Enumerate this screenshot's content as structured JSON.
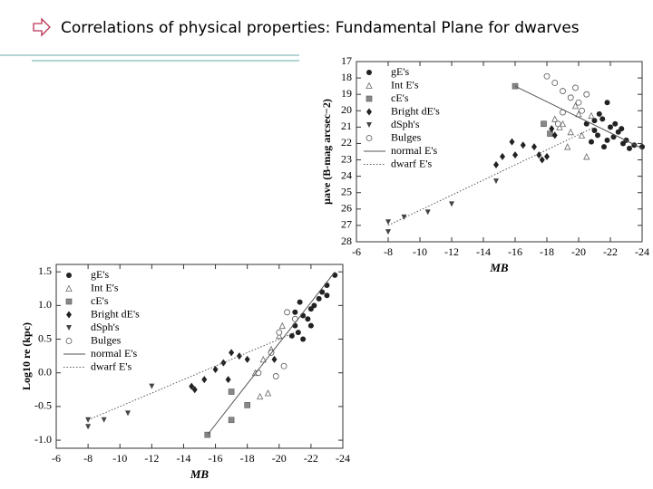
{
  "title": "Correlations of physical properties: Fundamental Plane for dwarves",
  "chart_data": [
    {
      "type": "scatter",
      "xlabel": "MB",
      "ylabel": "μave (B-mag arcsec−2)",
      "xlim": [
        -6,
        -24
      ],
      "xticks": [
        -6,
        -8,
        -10,
        -12,
        -14,
        -16,
        -18,
        -20,
        -22,
        -24
      ],
      "ylim": [
        28,
        17
      ],
      "yticks": [
        17,
        18,
        19,
        20,
        21,
        22,
        23,
        24,
        25,
        26,
        27,
        28
      ],
      "legend": "upper left",
      "color": "#222222",
      "series": [
        {
          "name": "gE's",
          "marker": "circle-filled",
          "x": [
            -20.5,
            -21,
            -21.2,
            -21.5,
            -21.8,
            -22,
            -22.2,
            -22.5,
            -22.8,
            -23,
            -23.5,
            -24,
            -21.3,
            -21.8,
            -22.3,
            -20.8,
            -21.6,
            -22.7,
            -23.2,
            -21
          ],
          "values": [
            20.8,
            21.2,
            21.5,
            20.5,
            21.8,
            21,
            21.6,
            21.3,
            22,
            21.8,
            22.1,
            22.2,
            20.2,
            19.5,
            20.8,
            21.9,
            22.2,
            21.1,
            22.3,
            20.6
          ]
        },
        {
          "name": "Int E's",
          "marker": "triangle-open",
          "x": [
            -18.5,
            -19,
            -19.5,
            -20,
            -19.8,
            -20.2,
            -20.5,
            -19.3,
            -20.8,
            -18.8
          ],
          "values": [
            20.5,
            20.8,
            21.3,
            20.2,
            19.7,
            21.5,
            22.8,
            22.2,
            20.3,
            21
          ]
        },
        {
          "name": "cE's",
          "marker": "square-gray",
          "x": [
            -16,
            -17.8,
            -18.2
          ],
          "values": [
            18.5,
            20.8,
            21.4
          ]
        },
        {
          "name": "Bright dE's",
          "marker": "diamond-filled",
          "x": [
            -14.8,
            -15.2,
            -16,
            -16.5,
            -17.5,
            -17.7,
            -18,
            -18.5,
            -17.2,
            -15.8,
            -18.3
          ],
          "values": [
            23.3,
            22.8,
            22.7,
            22.1,
            22.7,
            23,
            22.8,
            21.5,
            22.2,
            21.9,
            21.1
          ]
        },
        {
          "name": "dSph's",
          "marker": "triangle-down",
          "x": [
            -8,
            -8,
            -9,
            -10.5,
            -12,
            -14.8
          ],
          "values": [
            26.8,
            27.4,
            26.5,
            26.2,
            25.7,
            24.3
          ]
        },
        {
          "name": "Bulges",
          "marker": "circle-open",
          "x": [
            -18,
            -18.5,
            -19,
            -19.5,
            -20,
            -18.7,
            -20.2,
            -19.8,
            -19,
            -20.5
          ],
          "values": [
            17.9,
            18.3,
            18.8,
            19.2,
            19.5,
            20.8,
            20,
            18.6,
            20.1,
            19
          ]
        },
        {
          "name": "normal E's",
          "line": "solid",
          "x": [
            -16,
            -24
          ],
          "values": [
            18.5,
            22.3
          ]
        },
        {
          "name": "dwarf E's",
          "line": "dotted",
          "x": [
            -8,
            -21
          ],
          "values": [
            27,
            21
          ]
        }
      ]
    },
    {
      "type": "scatter",
      "xlabel": "MB",
      "ylabel": "Log10 re (kpc)",
      "xlim": [
        -6,
        -24
      ],
      "xticks": [
        -6,
        -8,
        -10,
        -12,
        -14,
        -16,
        -18,
        -20,
        -22,
        -24
      ],
      "ylim": [
        -1.12,
        1.61
      ],
      "yticks": [
        1.5,
        {
          "value": 1.0,
          "label": "1.0"
        },
        0.5,
        {
          "value": 0.0,
          "label": "0.0"
        },
        -0.5,
        {
          "value": -1.0,
          "label": "-1.0"
        }
      ],
      "legend": "upper left",
      "color": "#222222",
      "series": [
        {
          "name": "gE's",
          "marker": "circle-filled",
          "x": [
            -21,
            -21.5,
            -22,
            -22.5,
            -23,
            -23.5,
            -21.2,
            -21.8,
            -22.2,
            -22.7,
            -21,
            -20.8,
            -21.5,
            -22,
            -23,
            -21.3
          ],
          "values": [
            0.7,
            0.85,
            0.95,
            1.1,
            1.3,
            1.45,
            0.6,
            0.8,
            1.0,
            1.2,
            0.9,
            0.55,
            0.5,
            0.7,
            1.15,
            1.05
          ]
        },
        {
          "name": "Int E's",
          "marker": "triangle-open",
          "x": [
            -18.5,
            -19,
            -19.5,
            -20,
            -20.2,
            -19.3,
            -18.8
          ],
          "values": [
            0.0,
            0.2,
            0.35,
            0.55,
            0.7,
            -0.3,
            -0.35
          ]
        },
        {
          "name": "cE's",
          "marker": "square-gray",
          "x": [
            -15.5,
            -17,
            -17,
            -18
          ],
          "values": [
            -0.92,
            -0.7,
            -0.28,
            -0.48
          ]
        },
        {
          "name": "Bright dE's",
          "marker": "diamond-filled",
          "x": [
            -14.5,
            -14.7,
            -15.3,
            -16,
            -16.5,
            -17,
            -17.5,
            -18,
            -16.8,
            -19.7
          ],
          "values": [
            -0.2,
            -0.25,
            -0.1,
            0.05,
            0.15,
            0.3,
            0.25,
            0.2,
            -0.1,
            0.2
          ]
        },
        {
          "name": "dSph's",
          "marker": "triangle-down",
          "x": [
            -8,
            -8,
            -9,
            -10.5,
            -12
          ],
          "values": [
            -0.7,
            -0.8,
            -0.7,
            -0.6,
            -0.2
          ]
        },
        {
          "name": "Bulges",
          "marker": "circle-open",
          "x": [
            -18.7,
            -19.5,
            -20,
            -20.5,
            -21,
            -20.3,
            -19.8
          ],
          "values": [
            0.0,
            0.3,
            0.6,
            0.9,
            0.8,
            0.1,
            -0.05
          ]
        },
        {
          "name": "normal E's",
          "line": "solid",
          "x": [
            -15.5,
            -23.5
          ],
          "values": [
            -0.92,
            1.5
          ]
        },
        {
          "name": "dwarf E's",
          "line": "dotted",
          "x": [
            -8,
            -21
          ],
          "values": [
            -0.7,
            0.6
          ]
        }
      ]
    }
  ]
}
